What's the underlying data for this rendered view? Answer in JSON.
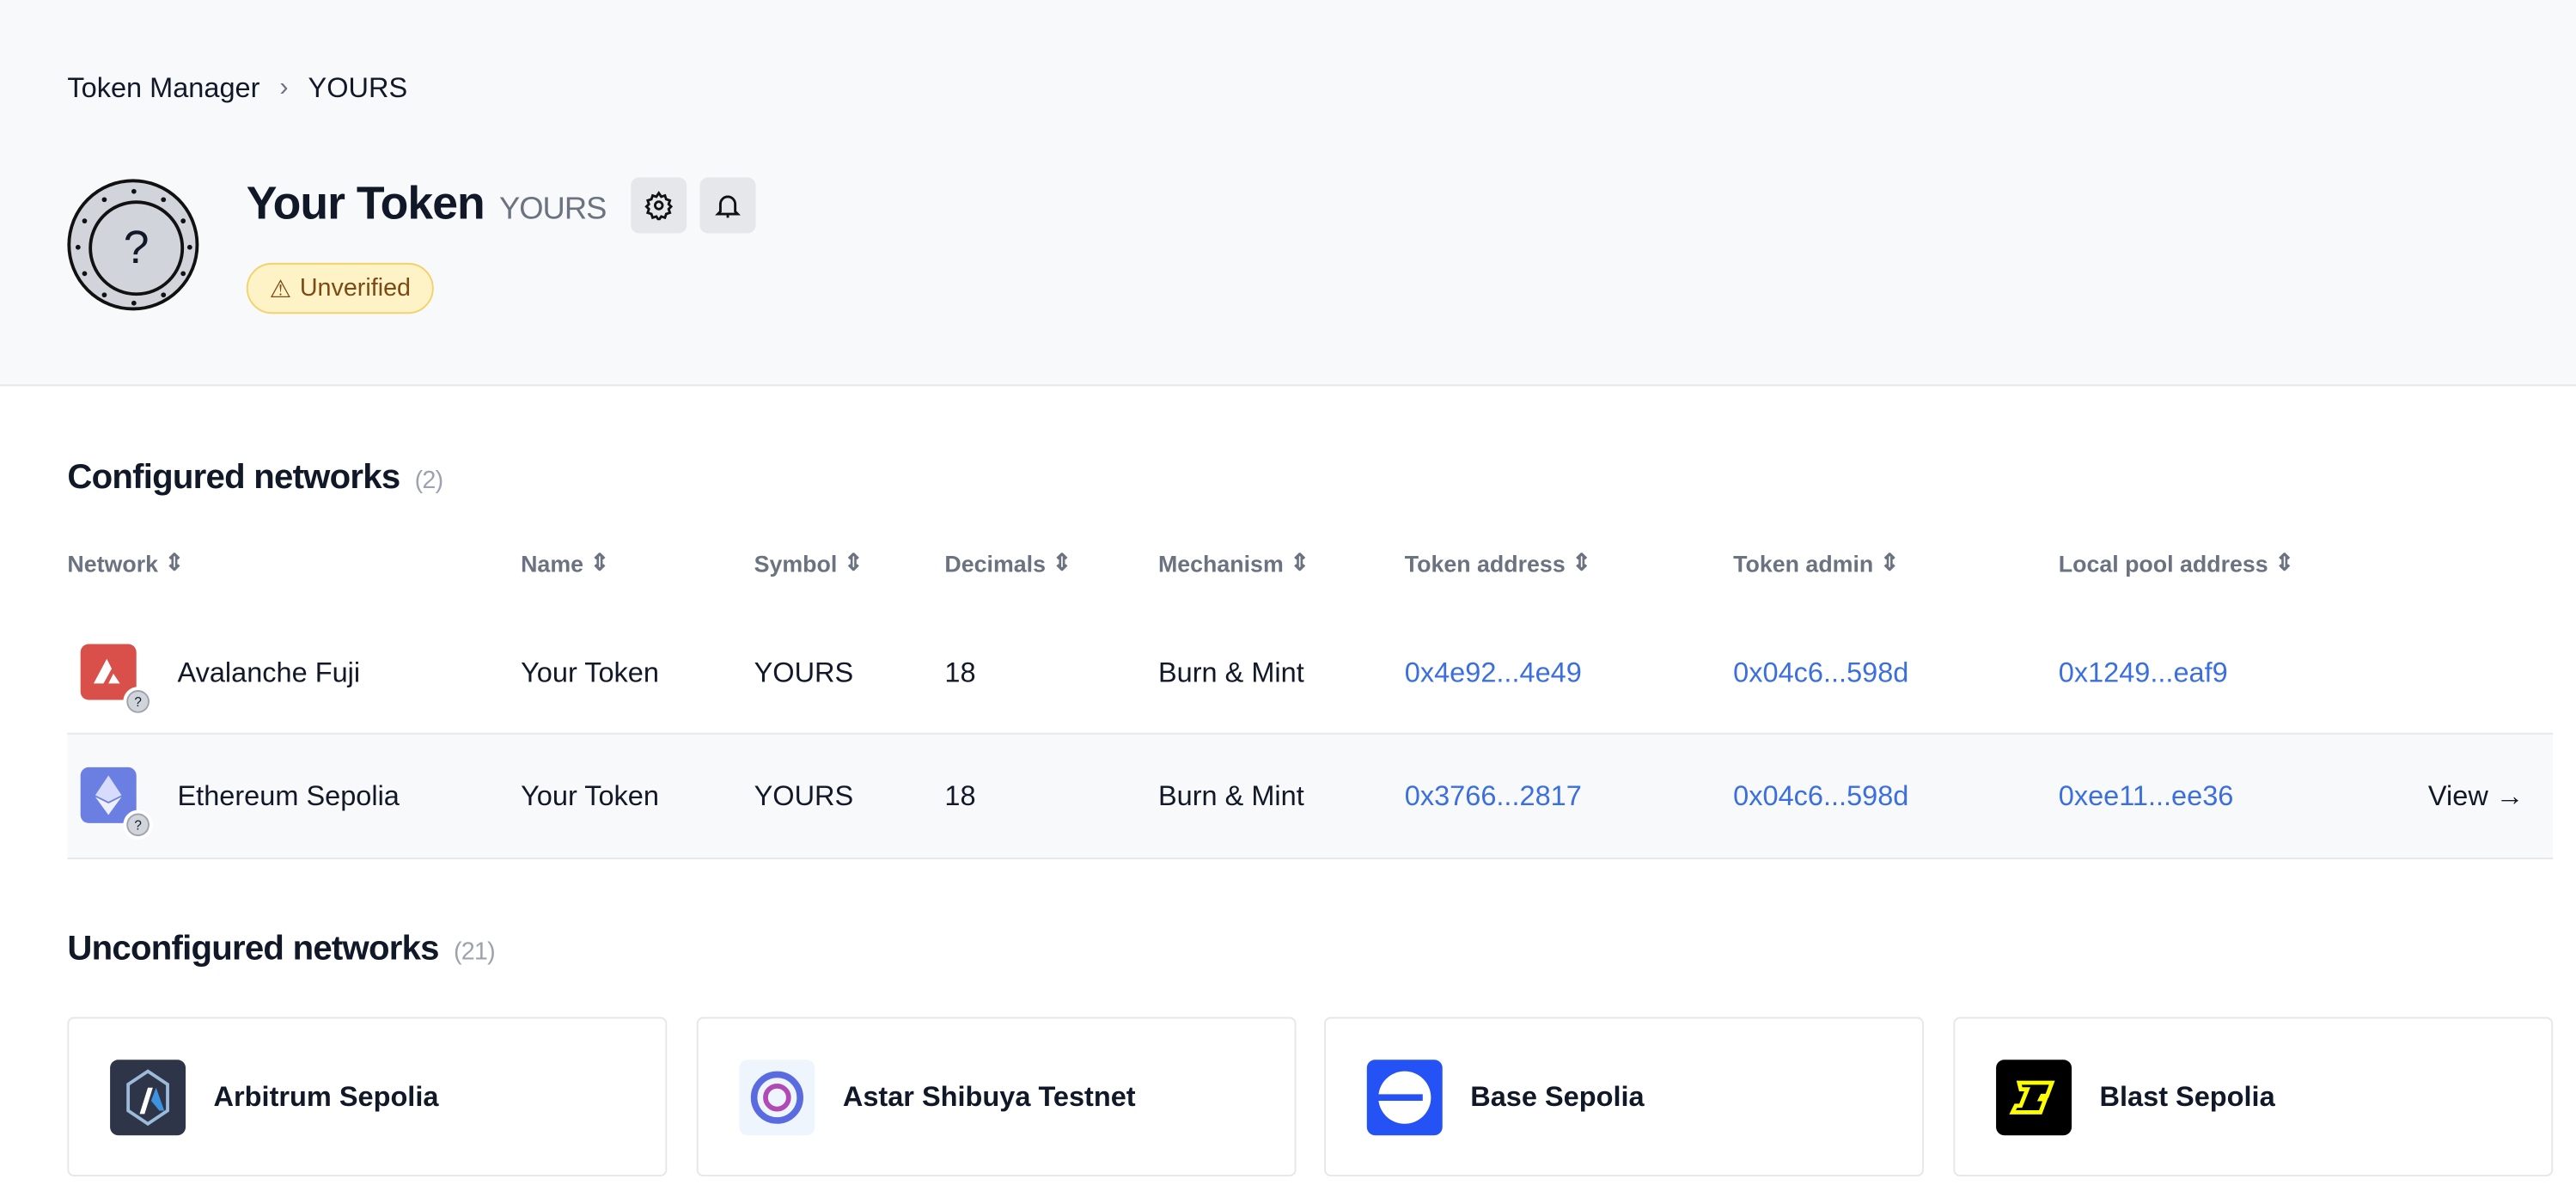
{
  "breadcrumb": {
    "parent": "Token Manager",
    "current": "YOURS"
  },
  "token": {
    "name": "Your Token",
    "symbol": "YOURS",
    "badge": "Unverified",
    "badge_icon": "warning-icon"
  },
  "configured": {
    "title": "Configured networks",
    "count": "(2)",
    "columns": [
      "Network",
      "Name",
      "Symbol",
      "Decimals",
      "Mechanism",
      "Token address",
      "Token admin",
      "Local pool address"
    ],
    "rows": [
      {
        "network": "Avalanche Fuji",
        "name": "Your Token",
        "symbol": "YOURS",
        "decimals": "18",
        "mechanism": "Burn & Mint",
        "token_address": "0x4e92...4e49",
        "token_admin": "0x04c6...598d",
        "pool": "0x1249...eaf9",
        "color": "#d9504a"
      },
      {
        "network": "Ethereum Sepolia",
        "name": "Your Token",
        "symbol": "YOURS",
        "decimals": "18",
        "mechanism": "Burn & Mint",
        "token_address": "0x3766...2817",
        "token_admin": "0x04c6...598d",
        "pool": "0xee11...ee36",
        "view": "View →",
        "color": "#6b7fe3"
      }
    ]
  },
  "unconfigured": {
    "title": "Unconfigured networks",
    "count": "(21)",
    "cards": [
      {
        "name": "Arbitrum Sepolia"
      },
      {
        "name": "Astar Shibuya Testnet"
      },
      {
        "name": "Base Sepolia"
      },
      {
        "name": "Blast Sepolia"
      }
    ]
  }
}
